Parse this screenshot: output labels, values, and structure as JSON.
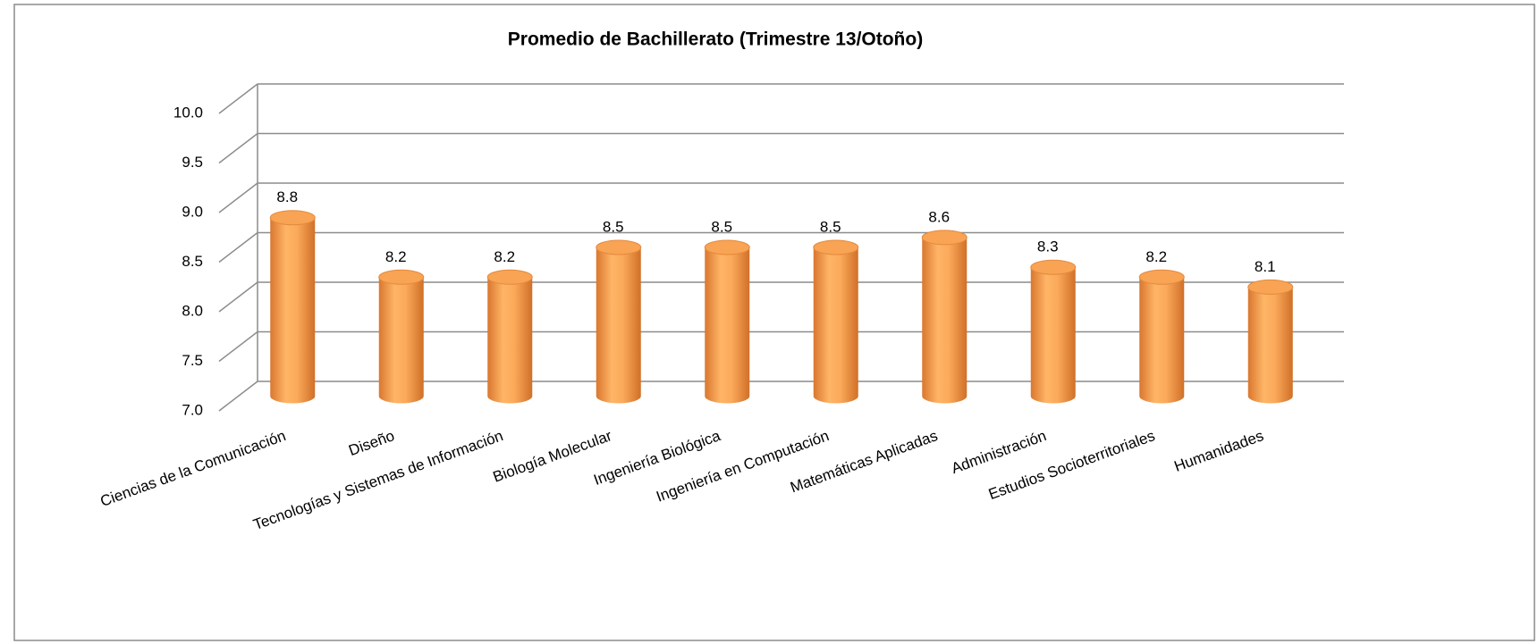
{
  "chart_data": {
    "type": "bar",
    "title": "Promedio de Bachillerato  (Trimestre 13/Otoño)",
    "categories": [
      "Ciencias de la Comunicación",
      "Diseño",
      "Tecnologías y Sistemas de Información",
      "Biología Molecular",
      "Ingeniería Biológica",
      "Ingeniería en Computación",
      "Matemáticas Aplicadas",
      "Administración",
      "Estudios Socioterritoriales",
      "Humanidades"
    ],
    "values": [
      8.8,
      8.2,
      8.2,
      8.5,
      8.5,
      8.5,
      8.6,
      8.3,
      8.2,
      8.1
    ],
    "color": "#f79646",
    "ylim": [
      7,
      10
    ],
    "yticks": [
      {
        "value": 7,
        "label": "7.0"
      },
      7.5,
      {
        "value": 8,
        "label": "8.0"
      },
      8.5,
      {
        "value": 9,
        "label": "9.0"
      },
      9.5,
      {
        "value": 10,
        "label": "10.0"
      }
    ],
    "grid": true
  }
}
